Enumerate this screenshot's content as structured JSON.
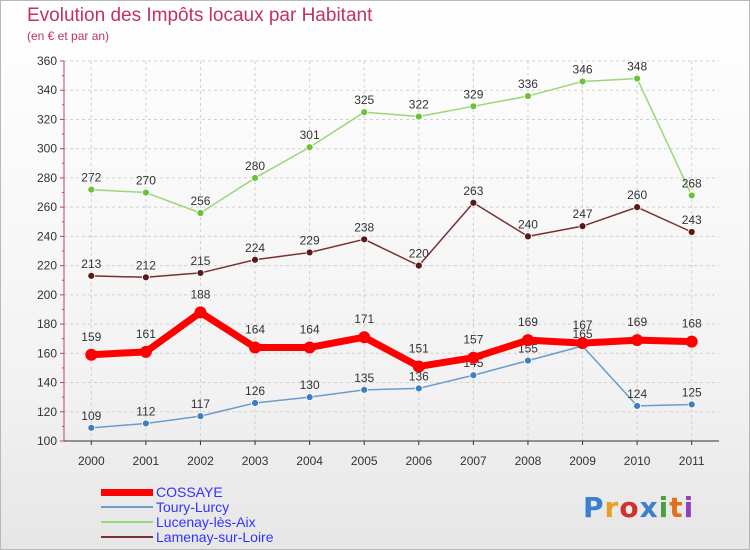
{
  "title": "Evolution des Impôts locaux par Habitant",
  "subtitle": "(en € et par an)",
  "logo": {
    "letters": [
      "P",
      "r",
      "o",
      "x",
      "i",
      "t",
      "i"
    ],
    "colors": [
      "#3a7fd0",
      "#e8a020",
      "#d03030",
      "#3a7fd0",
      "#4aa040",
      "#e07020",
      "#9040c0"
    ]
  },
  "chart_data": {
    "type": "line",
    "title": "Evolution des Impôts locaux par Habitant",
    "subtitle": "(en € et par an)",
    "x": [
      "2000",
      "2001",
      "2002",
      "2003",
      "2004",
      "2005",
      "2006",
      "2007",
      "2008",
      "2009",
      "2010",
      "2011"
    ],
    "ylim": [
      100,
      360
    ],
    "yticks": [
      100,
      120,
      140,
      160,
      180,
      200,
      220,
      240,
      260,
      280,
      300,
      320,
      340,
      360
    ],
    "grid": true,
    "legend_position": "bottom-left",
    "series": [
      {
        "name": "Lucenay-lès-Aix",
        "color": "#9ad67a",
        "point": "#6cc23a",
        "width": 1.5,
        "radius": 3.5,
        "values": [
          272,
          270,
          256,
          280,
          301,
          325,
          322,
          329,
          336,
          346,
          348,
          268
        ],
        "labels": [
          "272",
          "270",
          "256",
          "280",
          "301",
          "325",
          "322",
          "329",
          "336",
          "346",
          "348",
          "268"
        ]
      },
      {
        "name": "Lamenay-sur-Loire",
        "color": "#7a3030",
        "point": "#5a1818",
        "width": 1.5,
        "radius": 3.5,
        "values": [
          213,
          212,
          215,
          224,
          229,
          238,
          220,
          263,
          240,
          247,
          260,
          243
        ],
        "labels": [
          "213",
          "212",
          "215",
          "224",
          "229",
          "238",
          "220",
          "263",
          "240",
          "247",
          "260",
          "243"
        ]
      },
      {
        "name": "Toury-Lurcy",
        "color": "#6a9ccc",
        "point": "#3f7fbf",
        "width": 1.5,
        "radius": 3.5,
        "values": [
          109,
          112,
          117,
          126,
          130,
          135,
          136,
          145,
          155,
          165,
          124,
          125
        ],
        "labels": [
          "109",
          "112",
          "117",
          "126",
          "130",
          "135",
          "136",
          "145",
          "155",
          "165",
          "124",
          "125"
        ]
      },
      {
        "name": "COSSAYE",
        "color": "#ff0000",
        "point": "#ff0000",
        "width": 7,
        "radius": 6,
        "values": [
          159,
          161,
          188,
          164,
          164,
          171,
          151,
          157,
          169,
          167,
          169,
          168
        ],
        "labels": [
          "159",
          "161",
          "188",
          "164",
          "164",
          "171",
          "151",
          "157",
          "169",
          "167",
          "169",
          "168"
        ]
      }
    ],
    "legend": [
      {
        "name": "COSSAYE",
        "color": "#ff0000",
        "text_color": "#3333ff",
        "width": 7
      },
      {
        "name": "Toury-Lurcy",
        "color": "#6a9ccc",
        "text_color": "#3333ff",
        "width": 2
      },
      {
        "name": "Lucenay-lès-Aix",
        "color": "#9ad67a",
        "text_color": "#3333ff",
        "width": 2
      },
      {
        "name": "Lamenay-sur-Loire",
        "color": "#7a3030",
        "text_color": "#3333ff",
        "width": 2
      }
    ]
  }
}
